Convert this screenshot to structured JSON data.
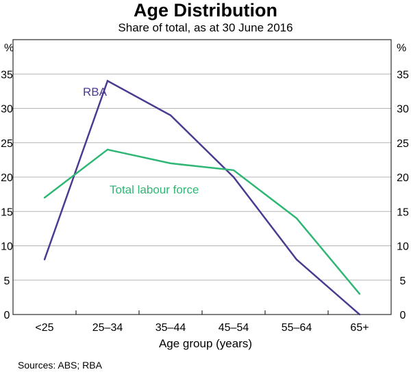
{
  "chart_data": {
    "type": "line",
    "title": "Age Distribution",
    "subtitle": "Share of total, as at 30 June 2016",
    "xlabel": "Age group (years)",
    "ylabel_left": "%",
    "ylabel_right": "%",
    "categories": [
      "<25",
      "25–34",
      "35–44",
      "45–54",
      "55–64",
      "65+"
    ],
    "ylim": [
      0,
      40
    ],
    "yticks": [
      0,
      5,
      10,
      15,
      20,
      25,
      30,
      35
    ],
    "grid": true,
    "series": [
      {
        "name": "RBA",
        "color": "#4b3a8f",
        "values": [
          8,
          34,
          29,
          20,
          8,
          0
        ]
      },
      {
        "name": "Total labour force",
        "color": "#2eb774",
        "values": [
          17,
          24,
          22,
          21,
          14,
          3
        ]
      }
    ],
    "source": "Sources:  ABS; RBA"
  }
}
